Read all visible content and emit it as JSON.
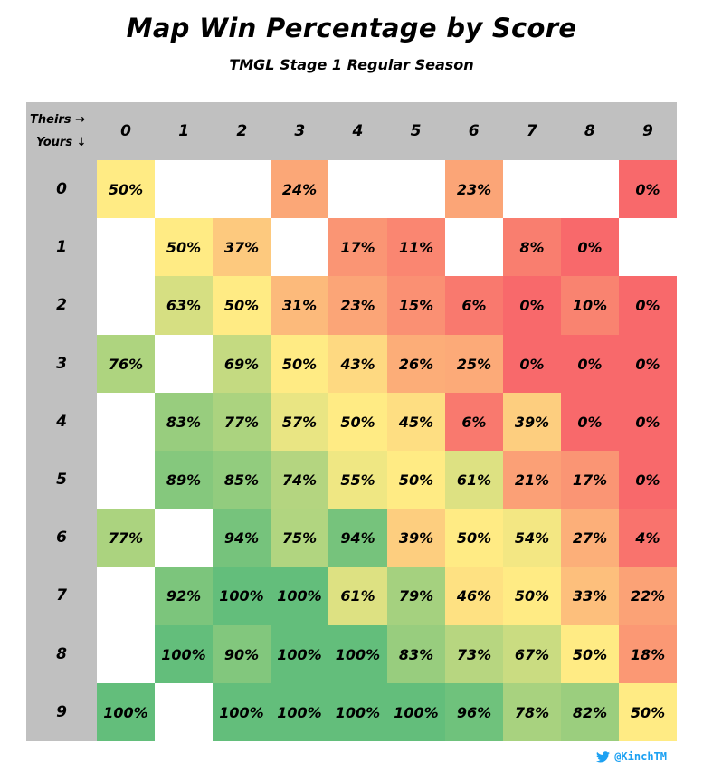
{
  "title": "Map Win Percentage by Score",
  "subtitle": "TMGL Stage 1 Regular Season",
  "credit": {
    "icon": "twitter-bird-icon",
    "handle": "@KinchTM",
    "color": "#1da1f2"
  },
  "chart_data": {
    "type": "heatmap",
    "title": "Map Win Percentage by Score",
    "subtitle": "TMGL Stage 1 Regular Season",
    "corner_labels": [
      "Theirs →",
      "Yours ↓"
    ],
    "x_label": "Theirs",
    "y_label": "Yours",
    "x_categories": [
      "0",
      "1",
      "2",
      "3",
      "4",
      "5",
      "6",
      "7",
      "8",
      "9"
    ],
    "y_categories": [
      "0",
      "1",
      "2",
      "3",
      "4",
      "5",
      "6",
      "7",
      "8",
      "9"
    ],
    "value_unit": "%",
    "color_scale": {
      "low": "#f8696b",
      "mid": "#ffeb84",
      "high": "#63be7b"
    },
    "values": [
      [
        50,
        null,
        null,
        24,
        null,
        null,
        23,
        null,
        null,
        0
      ],
      [
        null,
        50,
        37,
        null,
        17,
        11,
        null,
        8,
        0,
        null
      ],
      [
        null,
        63,
        50,
        31,
        23,
        15,
        6,
        0,
        10,
        0
      ],
      [
        76,
        null,
        69,
        50,
        43,
        26,
        25,
        0,
        0,
        0
      ],
      [
        null,
        83,
        77,
        57,
        50,
        45,
        6,
        39,
        0,
        0
      ],
      [
        null,
        89,
        85,
        74,
        55,
        50,
        61,
        21,
        17,
        0
      ],
      [
        77,
        null,
        94,
        75,
        94,
        39,
        50,
        54,
        27,
        4
      ],
      [
        null,
        92,
        100,
        100,
        61,
        79,
        46,
        50,
        33,
        22
      ],
      [
        null,
        100,
        90,
        100,
        100,
        83,
        73,
        67,
        50,
        18
      ],
      [
        100,
        null,
        100,
        100,
        100,
        100,
        96,
        78,
        82,
        50
      ]
    ]
  }
}
